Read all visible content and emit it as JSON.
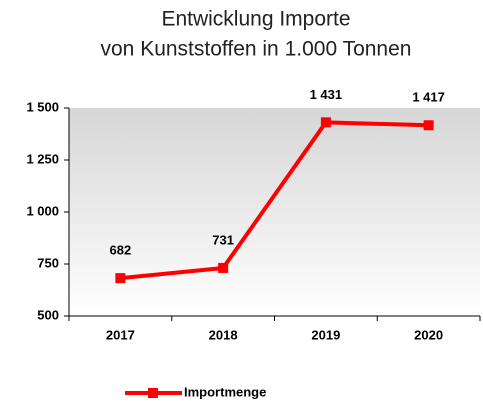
{
  "chart_data": {
    "type": "line",
    "title": [
      "Entwicklung Importe",
      "von Kunststoffen in 1.000 Tonnen"
    ],
    "categories": [
      "2017",
      "2018",
      "2019",
      "2020"
    ],
    "series": [
      {
        "name": "Importmenge",
        "color": "#ff0000",
        "values": [
          682,
          731,
          1431,
          1417
        ],
        "value_labels": [
          "682",
          "731",
          "1 431",
          "1 417"
        ]
      }
    ],
    "ylim": [
      500,
      1500
    ],
    "yticks": [
      500,
      750,
      {
        "value": 1000,
        "label": "1 000"
      },
      {
        "value": 1250,
        "label": "1 250"
      },
      {
        "value": 1500,
        "label": "1 500"
      }
    ],
    "legend": "bottom"
  }
}
